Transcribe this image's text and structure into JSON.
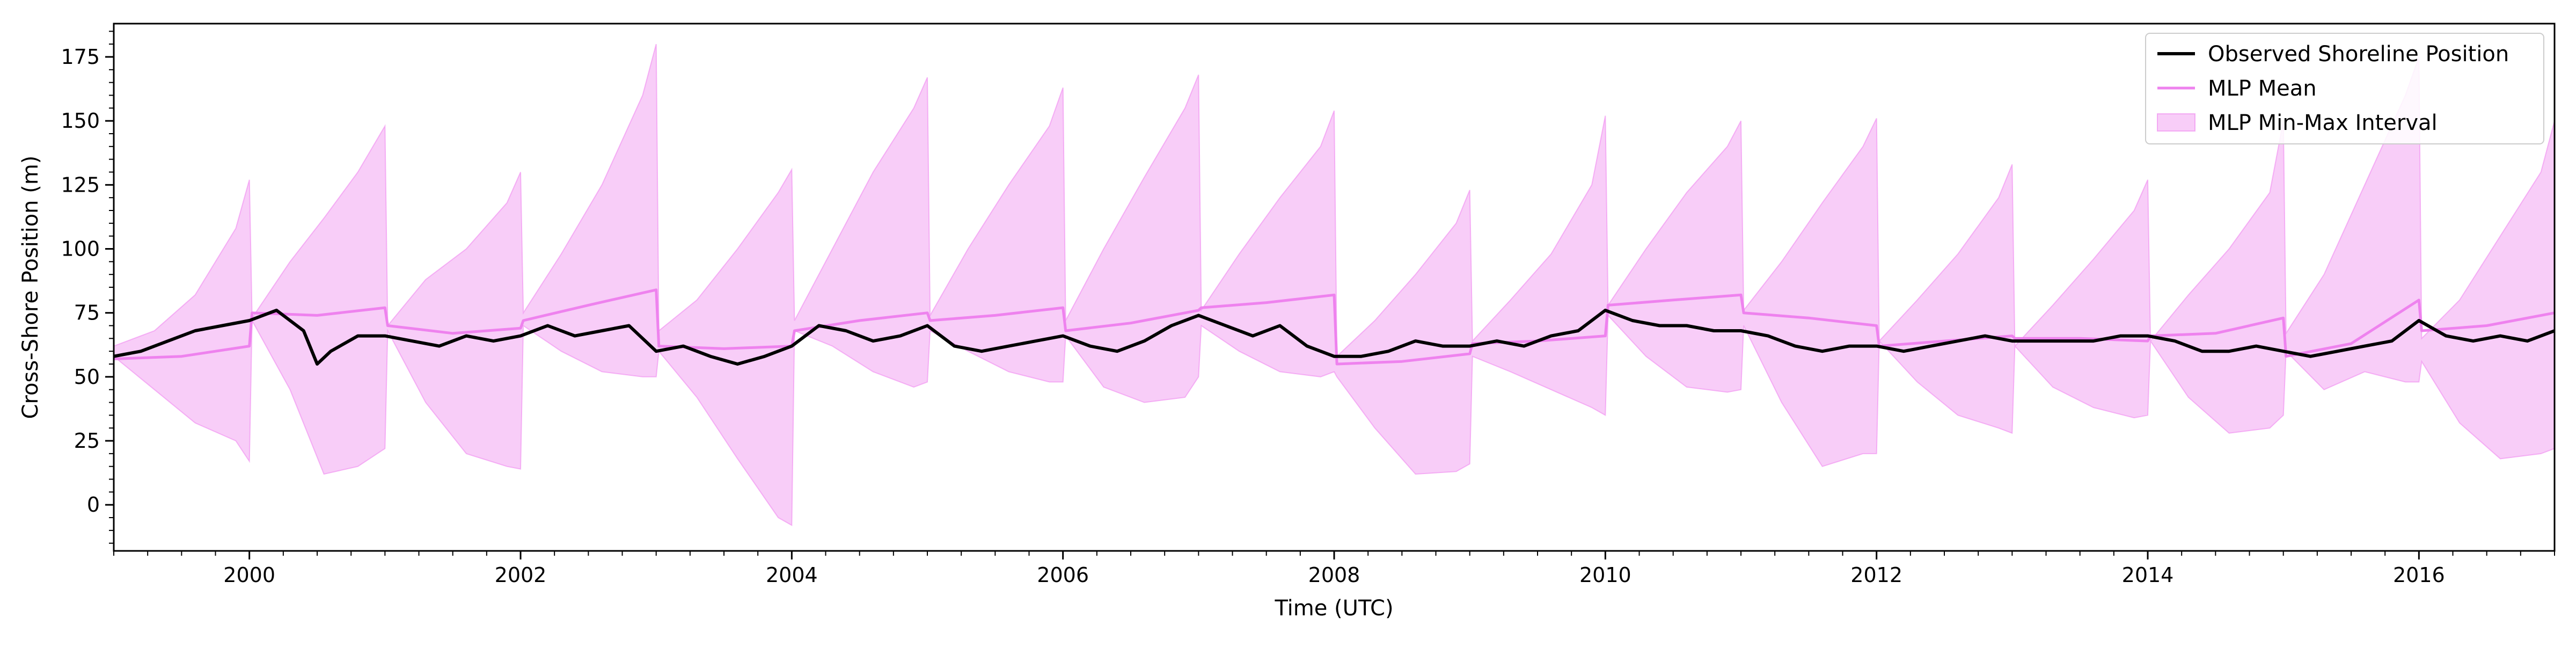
{
  "chart_data": {
    "type": "line",
    "title": "",
    "xlabel": "Time (UTC)",
    "ylabel": "Cross-Shore Position (m)",
    "xlim": [
      1999.0,
      2017.0
    ],
    "ylim": [
      -18,
      188
    ],
    "x_ticks": [
      2000,
      2002,
      2004,
      2006,
      2008,
      2010,
      2012,
      2014,
      2016
    ],
    "x_tick_labels": [
      "2000",
      "2002",
      "2004",
      "2006",
      "2008",
      "2010",
      "2012",
      "2014",
      "2016"
    ],
    "y_ticks": [
      0,
      25,
      50,
      75,
      100,
      125,
      150,
      175
    ],
    "y_tick_labels": [
      "0",
      "25",
      "50",
      "75",
      "100",
      "125",
      "150",
      "175"
    ],
    "grid": false,
    "legend_position": "top-right",
    "colors": {
      "observed": "#000000",
      "mean": "#ee82ee",
      "band": "#ee82ee"
    },
    "legend": [
      {
        "label": "Observed Shoreline Position",
        "kind": "line",
        "series": "observed"
      },
      {
        "label": "MLP Mean",
        "kind": "line",
        "series": "mean"
      },
      {
        "label": "MLP Min-Max Interval",
        "kind": "patch",
        "series": "band"
      }
    ],
    "observed": {
      "name": "Observed Shoreline Position",
      "x": [
        1999.0,
        1999.2,
        1999.4,
        1999.6,
        1999.8,
        2000.0,
        2000.2,
        2000.4,
        2000.5,
        2000.6,
        2000.8,
        2001.0,
        2001.2,
        2001.4,
        2001.6,
        2001.8,
        2002.0,
        2002.2,
        2002.4,
        2002.6,
        2002.8,
        2003.0,
        2003.2,
        2003.4,
        2003.6,
        2003.8,
        2004.0,
        2004.2,
        2004.4,
        2004.6,
        2004.8,
        2005.0,
        2005.2,
        2005.4,
        2005.6,
        2005.8,
        2006.0,
        2006.2,
        2006.4,
        2006.6,
        2006.8,
        2007.0,
        2007.2,
        2007.4,
        2007.6,
        2007.8,
        2008.0,
        2008.2,
        2008.4,
        2008.6,
        2008.8,
        2009.0,
        2009.2,
        2009.4,
        2009.6,
        2009.8,
        2010.0,
        2010.2,
        2010.4,
        2010.6,
        2010.8,
        2011.0,
        2011.2,
        2011.4,
        2011.6,
        2011.8,
        2012.0,
        2012.2,
        2012.4,
        2012.6,
        2012.8,
        2013.0,
        2013.2,
        2013.4,
        2013.6,
        2013.8,
        2014.0,
        2014.2,
        2014.4,
        2014.6,
        2014.8,
        2015.0,
        2015.2,
        2015.4,
        2015.6,
        2015.8,
        2016.0,
        2016.2,
        2016.4,
        2016.6,
        2016.8,
        2017.0
      ],
      "y": [
        58,
        60,
        64,
        68,
        70,
        72,
        76,
        68,
        55,
        60,
        66,
        66,
        64,
        62,
        66,
        64,
        66,
        70,
        66,
        68,
        70,
        60,
        62,
        58,
        55,
        58,
        62,
        70,
        68,
        64,
        66,
        70,
        62,
        60,
        62,
        64,
        66,
        62,
        60,
        64,
        70,
        74,
        70,
        66,
        70,
        62,
        58,
        58,
        60,
        64,
        62,
        62,
        64,
        62,
        66,
        68,
        76,
        72,
        70,
        70,
        68,
        68,
        66,
        62,
        60,
        62,
        62,
        60,
        62,
        64,
        66,
        64,
        64,
        64,
        64,
        66,
        66,
        64,
        60,
        60,
        62,
        60,
        58,
        60,
        62,
        64,
        72,
        66,
        64,
        66,
        64,
        68
      ]
    },
    "mean": {
      "name": "MLP Mean",
      "x": [
        1999.0,
        1999.5,
        2000.0,
        2000.02,
        2000.5,
        2001.0,
        2001.02,
        2001.5,
        2002.0,
        2002.02,
        2002.5,
        2003.0,
        2003.02,
        2003.5,
        2004.0,
        2004.02,
        2004.5,
        2005.0,
        2005.02,
        2005.5,
        2006.0,
        2006.02,
        2006.5,
        2007.0,
        2007.02,
        2007.5,
        2008.0,
        2008.02,
        2008.5,
        2009.0,
        2009.02,
        2009.5,
        2010.0,
        2010.02,
        2010.5,
        2011.0,
        2011.02,
        2011.5,
        2012.0,
        2012.02,
        2012.5,
        2013.0,
        2013.02,
        2013.5,
        2014.0,
        2014.02,
        2014.5,
        2015.0,
        2015.02,
        2015.5,
        2016.0,
        2016.02,
        2016.5,
        2017.0
      ],
      "y": [
        57,
        58,
        62,
        75,
        74,
        77,
        70,
        67,
        69,
        72,
        78,
        84,
        62,
        61,
        62,
        68,
        72,
        75,
        72,
        74,
        77,
        68,
        71,
        76,
        77,
        79,
        82,
        55,
        56,
        59,
        63,
        64,
        66,
        78,
        80,
        82,
        75,
        73,
        70,
        62,
        64,
        66,
        65,
        65,
        64,
        66,
        67,
        73,
        58,
        63,
        80,
        68,
        70,
        75
      ]
    },
    "band": {
      "name": "MLP Min-Max Interval",
      "x": [
        1999.0,
        1999.3,
        1999.6,
        1999.9,
        2000.0,
        2000.02,
        2000.3,
        2000.55,
        2000.8,
        2001.0,
        2001.02,
        2001.3,
        2001.6,
        2001.9,
        2002.0,
        2002.02,
        2002.3,
        2002.6,
        2002.9,
        2003.0,
        2003.02,
        2003.3,
        2003.6,
        2003.9,
        2004.0,
        2004.02,
        2004.3,
        2004.6,
        2004.9,
        2005.0,
        2005.02,
        2005.3,
        2005.6,
        2005.9,
        2006.0,
        2006.02,
        2006.3,
        2006.6,
        2006.9,
        2007.0,
        2007.02,
        2007.3,
        2007.6,
        2007.9,
        2008.0,
        2008.02,
        2008.3,
        2008.6,
        2008.9,
        2009.0,
        2009.02,
        2009.3,
        2009.6,
        2009.9,
        2010.0,
        2010.02,
        2010.3,
        2010.6,
        2010.9,
        2011.0,
        2011.02,
        2011.3,
        2011.6,
        2011.9,
        2012.0,
        2012.02,
        2012.3,
        2012.6,
        2012.9,
        2013.0,
        2013.02,
        2013.3,
        2013.6,
        2013.9,
        2014.0,
        2014.02,
        2014.3,
        2014.6,
        2014.9,
        2015.0,
        2015.02,
        2015.3,
        2015.6,
        2015.9,
        2016.0,
        2016.02,
        2016.3,
        2016.6,
        2016.9,
        2017.0
      ],
      "upper": [
        62,
        68,
        82,
        108,
        127,
        73,
        95,
        112,
        130,
        148,
        70,
        88,
        100,
        118,
        130,
        75,
        98,
        125,
        160,
        180,
        68,
        80,
        100,
        122,
        131,
        72,
        100,
        130,
        155,
        167,
        74,
        100,
        125,
        148,
        163,
        72,
        100,
        128,
        155,
        168,
        76,
        98,
        120,
        140,
        154,
        58,
        72,
        90,
        110,
        123,
        64,
        80,
        98,
        125,
        152,
        78,
        100,
        122,
        140,
        150,
        76,
        95,
        118,
        140,
        151,
        64,
        80,
        98,
        120,
        133,
        62,
        78,
        96,
        115,
        127,
        64,
        82,
        100,
        122,
        150,
        67,
        90,
        125,
        160,
        175,
        65,
        80,
        105,
        130,
        150
      ],
      "lower": [
        58,
        45,
        32,
        25,
        17,
        72,
        45,
        12,
        15,
        22,
        68,
        40,
        20,
        15,
        14,
        70,
        60,
        52,
        50,
        50,
        60,
        42,
        18,
        -5,
        -8,
        68,
        62,
        52,
        46,
        48,
        68,
        60,
        52,
        48,
        48,
        66,
        46,
        40,
        42,
        50,
        70,
        60,
        52,
        50,
        52,
        50,
        30,
        12,
        13,
        16,
        58,
        52,
        45,
        38,
        35,
        74,
        58,
        46,
        44,
        45,
        70,
        40,
        15,
        20,
        20,
        64,
        48,
        35,
        30,
        28,
        62,
        46,
        38,
        34,
        35,
        64,
        42,
        28,
        30,
        35,
        60,
        45,
        52,
        48,
        48,
        56,
        32,
        18,
        20,
        22
      ]
    }
  }
}
